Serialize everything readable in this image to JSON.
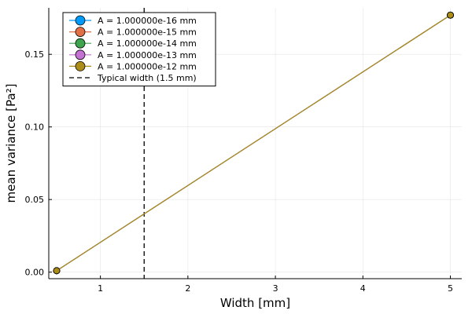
{
  "chart_data": {
    "type": "line",
    "title": "",
    "xlabel": "Width [mm]",
    "ylabel": "mean variance [Pa²]",
    "xlim": [
      0.41,
      5.13
    ],
    "ylim": [
      -0.0045,
      0.182
    ],
    "xticks": [
      1,
      2,
      3,
      4,
      5
    ],
    "xtick_labels": [
      "1",
      "2",
      "3",
      "4",
      "5"
    ],
    "yticks": [
      0.0,
      0.05,
      0.1,
      0.15
    ],
    "ytick_labels": [
      "0.00",
      "0.05",
      "0.10",
      "0.15"
    ],
    "grid": true,
    "legend_position": "top-left",
    "series": [
      {
        "name": "A = 1.000000e-16 mm",
        "color": "#009AFA",
        "marker": "circle",
        "x": [
          0.5,
          5
        ],
        "y": [
          0.001,
          0.177
        ]
      },
      {
        "name": "A = 1.000000e-15 mm",
        "color": "#E36F47",
        "marker": "circle",
        "x": [
          0.5,
          5
        ],
        "y": [
          0.001,
          0.177
        ]
      },
      {
        "name": "A = 1.000000e-14 mm",
        "color": "#3EA44E",
        "marker": "circle",
        "x": [
          0.5,
          5
        ],
        "y": [
          0.001,
          0.177
        ]
      },
      {
        "name": "A = 1.000000e-13 mm",
        "color": "#C371D2",
        "marker": "circle",
        "x": [
          0.5,
          5
        ],
        "y": [
          0.001,
          0.177
        ]
      },
      {
        "name": "A = 1.000000e-12 mm",
        "color": "#AC8D18",
        "marker": "circle",
        "x": [
          0.5,
          5
        ],
        "y": [
          0.001,
          0.177
        ]
      }
    ],
    "reference_line": {
      "name": "Typical width (1.5 mm)",
      "orientation": "vertical",
      "x": 1.5,
      "style": "dashed",
      "color": "#000000"
    }
  }
}
